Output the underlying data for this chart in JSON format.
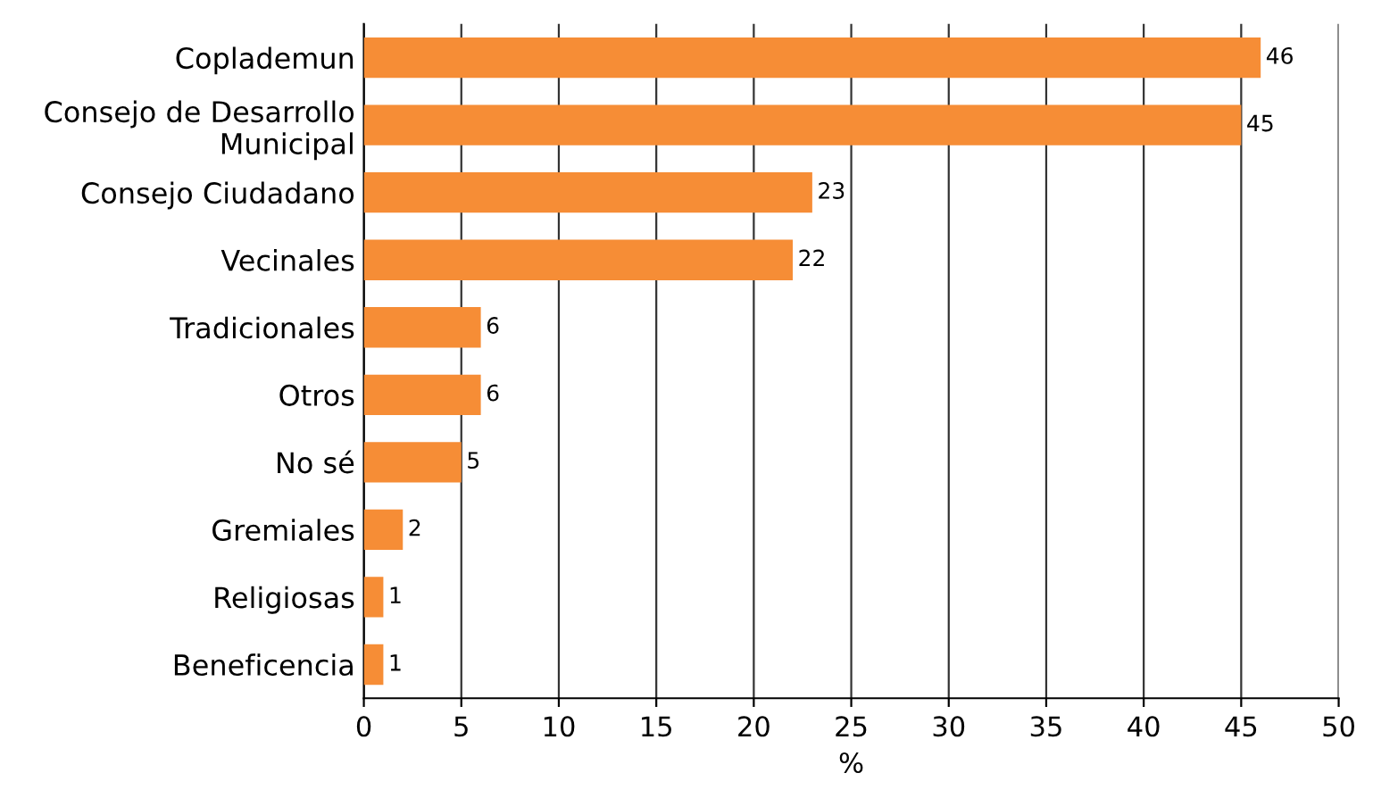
{
  "chart_data": {
    "type": "bar",
    "orientation": "horizontal",
    "xlabel": "%",
    "categories": [
      "Coplademun",
      "Consejo de Desarrollo\nMunicipal",
      "Consejo Ciudadano",
      "Vecinales",
      "Tradicionales",
      "Otros",
      "No sé",
      "Gremiales",
      "Religiosas",
      "Beneficencia"
    ],
    "values": [
      46,
      45,
      23,
      22,
      6,
      6,
      5,
      2,
      1,
      1
    ],
    "color": "#f68d36",
    "xlim": [
      0,
      50
    ],
    "xticks": [
      0,
      5,
      10,
      15,
      20,
      25,
      30,
      35,
      40,
      45,
      50
    ],
    "grid": "x",
    "data_labels": true
  }
}
